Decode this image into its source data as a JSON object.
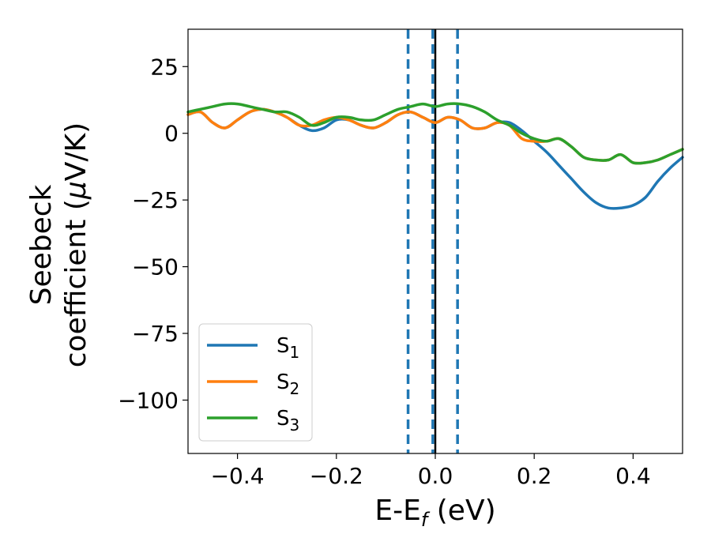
{
  "chart_data": {
    "type": "line",
    "xlabel": {
      "base": "E-E",
      "sub": "f",
      "suffix": " (eV)"
    },
    "ylabel": {
      "line1": "Seebeck",
      "line2_pre": "coefficient  (",
      "line2_mu": "μ",
      "line2_post": "V/K)"
    },
    "xlim": [
      -0.5,
      0.5
    ],
    "ylim": [
      -120,
      39
    ],
    "xticks": [
      -0.4,
      -0.2,
      0.0,
      0.2,
      0.4
    ],
    "xtick_labels": [
      "−0.4",
      "−0.2",
      "0.0",
      "0.2",
      "0.4"
    ],
    "yticks": [
      25,
      0,
      -25,
      -50,
      -75,
      -100
    ],
    "ytick_labels": [
      "25",
      "0",
      "−25",
      "−50",
      "−75",
      "−100"
    ],
    "grid": false,
    "legend_position": "lower-left",
    "vlines": [
      {
        "x": -0.055,
        "style": "dashed",
        "color": "#1f77b4"
      },
      {
        "x": -0.005,
        "style": "dashed",
        "color": "#1f77b4"
      },
      {
        "x": 0.0,
        "style": "solid",
        "color": "#000000"
      },
      {
        "x": 0.045,
        "style": "dashed",
        "color": "#1f77b4"
      }
    ],
    "x": [
      -0.5,
      -0.475,
      -0.45,
      -0.425,
      -0.4,
      -0.375,
      -0.35,
      -0.325,
      -0.3,
      -0.275,
      -0.25,
      -0.225,
      -0.2,
      -0.175,
      -0.15,
      -0.125,
      -0.1,
      -0.075,
      -0.05,
      -0.025,
      0.0,
      0.025,
      0.05,
      0.075,
      0.1,
      0.125,
      0.15,
      0.175,
      0.2,
      0.225,
      0.25,
      0.275,
      0.3,
      0.325,
      0.35,
      0.375,
      0.4,
      0.425,
      0.45,
      0.475,
      0.5
    ],
    "series": [
      {
        "name": "S",
        "sub": "1",
        "color": "#1f77b4",
        "values": [
          7,
          8,
          4,
          2,
          5,
          8,
          9,
          8,
          6,
          3,
          1,
          2,
          5,
          5,
          3,
          2,
          4,
          7,
          8,
          6,
          4,
          6,
          5,
          2,
          2,
          4,
          4,
          1,
          -3,
          -7,
          -12,
          -17,
          -22,
          -26,
          -28,
          -28,
          -27,
          -24,
          -18,
          -13,
          -9
        ]
      },
      {
        "name": "S",
        "sub": "2",
        "color": "#ff7f0e",
        "values": [
          7,
          8,
          4,
          2,
          5,
          8,
          9,
          8,
          6,
          3,
          3,
          5,
          6,
          5,
          3,
          2,
          4,
          7,
          8,
          6,
          4,
          6,
          5,
          2,
          2,
          4,
          3,
          -2,
          -3,
          -3,
          -2,
          -5,
          -9,
          -10,
          -10,
          -8,
          -11,
          -11,
          -10,
          -8,
          -6
        ]
      },
      {
        "name": "S",
        "sub": "3",
        "color": "#2ca02c",
        "values": [
          8,
          9,
          10,
          11,
          11,
          10,
          9,
          8,
          8,
          6,
          3,
          4,
          6,
          6,
          5,
          5,
          7,
          9,
          10,
          11,
          10,
          11,
          11,
          10,
          8,
          5,
          3,
          0,
          -2,
          -3,
          -2,
          -5,
          -9,
          -10,
          -10,
          -8,
          -11,
          -11,
          -10,
          -8,
          -6
        ]
      }
    ]
  }
}
